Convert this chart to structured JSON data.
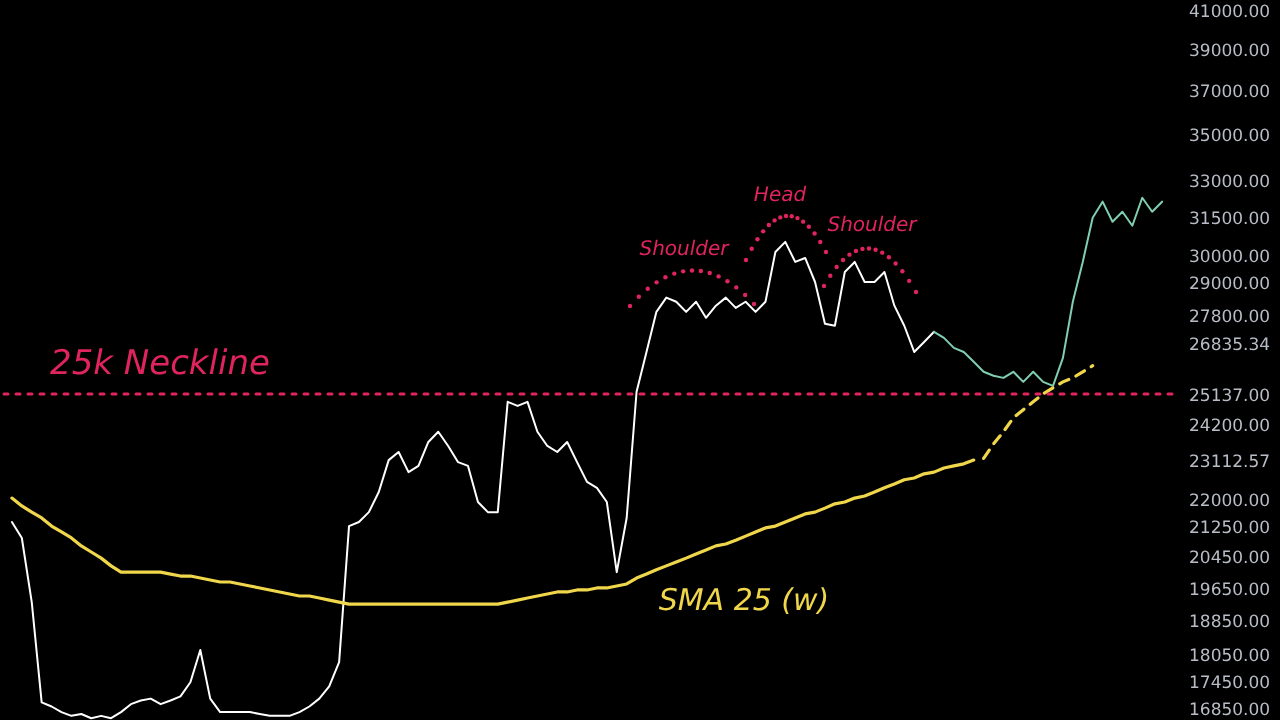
{
  "chart_data": {
    "type": "line",
    "categories": [
      null,
      null,
      null,
      null,
      null,
      null,
      null,
      null,
      null,
      null,
      null,
      null,
      null,
      null,
      null,
      null,
      null,
      null,
      null,
      null,
      null,
      null,
      null,
      null,
      null,
      null,
      null,
      null,
      null,
      null,
      null,
      null,
      null,
      null,
      null,
      null,
      null,
      null,
      null,
      null,
      null,
      null,
      null,
      null,
      null,
      null,
      null,
      null,
      null,
      null,
      null,
      null,
      null,
      null,
      null,
      null,
      null,
      null,
      null,
      null,
      null,
      null,
      null,
      null,
      null,
      null,
      null,
      null,
      null,
      null,
      null,
      null,
      null,
      null,
      null,
      null,
      null,
      null,
      null,
      null,
      null,
      null,
      null,
      null,
      null,
      null,
      null,
      null,
      null,
      null,
      null,
      null,
      null,
      null,
      null,
      null,
      null,
      null,
      null,
      null,
      null,
      null,
      null,
      null,
      null,
      null,
      null,
      null,
      null,
      null,
      null,
      null,
      null,
      null,
      null,
      null,
      null
    ],
    "series": [
      {
        "color": "#ffffff",
        "values": [
          21360,
          20930,
          19290,
          16980,
          16890,
          16770,
          16690,
          16730,
          16640,
          16690,
          16640,
          16770,
          16940,
          17020,
          17060,
          16940,
          17020,
          17110,
          17420,
          18150,
          17060,
          16770,
          16770,
          16770,
          16770,
          16730,
          16690,
          16690,
          16690,
          16770,
          16890,
          17060,
          17330,
          17870,
          21250,
          21360,
          21630,
          22190,
          23110,
          23350,
          22760,
          22940,
          23650,
          23960,
          23530,
          23050,
          22940,
          21910,
          21630,
          21630,
          24890,
          24760,
          24890,
          23960,
          23530,
          23350,
          23650,
          23050,
          22480,
          22310,
          21910,
          20040,
          21470,
          25210,
          26520,
          27910,
          28420,
          28270,
          27910,
          28270,
          27700,
          28130,
          28420,
          28050,
          28270,
          27910,
          28270,
          30120,
          30510,
          29740,
          29890,
          28990,
          27490,
          27420,
          29360,
          29740,
          28990,
          28990,
          29360,
          28130,
          27420,
          26520,
          26860,
          27210,
          null,
          null,
          null,
          null,
          null,
          null,
          null,
          null,
          null,
          null,
          null,
          null,
          null,
          null,
          null,
          null,
          null,
          null,
          null,
          null,
          null,
          null,
          null
        ]
      },
      {
        "color": "#7fcfb0",
        "values": [
          null,
          null,
          null,
          null,
          null,
          null,
          null,
          null,
          null,
          null,
          null,
          null,
          null,
          null,
          null,
          null,
          null,
          null,
          null,
          null,
          null,
          null,
          null,
          null,
          null,
          null,
          null,
          null,
          null,
          null,
          null,
          null,
          null,
          null,
          null,
          null,
          null,
          null,
          null,
          null,
          null,
          null,
          null,
          null,
          null,
          null,
          null,
          null,
          null,
          null,
          null,
          null,
          null,
          null,
          null,
          null,
          null,
          null,
          null,
          null,
          null,
          null,
          null,
          null,
          null,
          null,
          null,
          null,
          null,
          null,
          null,
          null,
          null,
          null,
          null,
          null,
          null,
          null,
          null,
          null,
          null,
          null,
          null,
          null,
          null,
          null,
          null,
          null,
          null,
          null,
          null,
          null,
          null,
          27210,
          27000,
          26660,
          26520,
          26190,
          25860,
          25730,
          25660,
          25860,
          25530,
          25860,
          25530,
          25400,
          26320,
          28270,
          29740,
          31460,
          32110,
          31300,
          31700,
          31140,
          32270,
          31700,
          32110
        ]
      },
      {
        "name": "SMA 25 (w)",
        "color": "#f0d64a",
        "values": [
          22020,
          21800,
          21630,
          21470,
          21250,
          21090,
          20930,
          20720,
          20560,
          20400,
          20200,
          20040,
          20040,
          20040,
          20040,
          20040,
          19990,
          19940,
          19940,
          19890,
          19840,
          19790,
          19790,
          19740,
          19690,
          19640,
          19590,
          19540,
          19490,
          19440,
          19440,
          19390,
          19340,
          19290,
          19240,
          19240,
          19240,
          19240,
          19240,
          19240,
          19240,
          19240,
          19240,
          19240,
          19240,
          19240,
          19240,
          19240,
          19240,
          19240,
          19290,
          19340,
          19390,
          19440,
          19490,
          19540,
          19540,
          19590,
          19590,
          19640,
          19640,
          19690,
          19740,
          19890,
          19990,
          20100,
          20200,
          20300,
          20400,
          20510,
          20610,
          20720,
          20770,
          20870,
          20980,
          21090,
          21200,
          21250,
          21360,
          21470,
          21580,
          21630,
          21740,
          21860,
          21910,
          22020,
          22080,
          22190,
          22310,
          22420,
          22540,
          22590,
          22710,
          22760,
          22880,
          22940,
          23000,
          23110,
          null,
          null,
          null,
          null,
          null,
          null,
          null,
          null,
          null,
          null,
          null,
          null,
          null,
          null,
          null,
          null,
          null,
          null,
          null
        ]
      },
      {
        "color": "#f0d64a",
        "line_style": "dashed",
        "values": [
          null,
          null,
          null,
          null,
          null,
          null,
          null,
          null,
          null,
          null,
          null,
          null,
          null,
          null,
          null,
          null,
          null,
          null,
          null,
          null,
          null,
          null,
          null,
          null,
          null,
          null,
          null,
          null,
          null,
          null,
          null,
          null,
          null,
          null,
          null,
          null,
          null,
          null,
          null,
          null,
          null,
          null,
          null,
          null,
          null,
          null,
          null,
          null,
          null,
          null,
          null,
          null,
          null,
          null,
          null,
          null,
          null,
          null,
          null,
          null,
          null,
          null,
          null,
          null,
          null,
          null,
          null,
          null,
          null,
          null,
          null,
          null,
          null,
          null,
          null,
          null,
          null,
          null,
          null,
          null,
          null,
          null,
          null,
          null,
          null,
          null,
          null,
          null,
          null,
          null,
          null,
          null,
          null,
          null,
          null,
          null,
          null,
          null,
          23160,
          23590,
          23960,
          24390,
          24640,
          24890,
          25140,
          25340,
          25530,
          25660,
          25860,
          26060,
          null,
          null,
          null,
          null,
          null,
          null,
          null
        ]
      }
    ],
    "log": true,
    "ylim": [
      16560,
      41400
    ],
    "yticks": [
      {
        "value": 41000,
        "label": "41000.00"
      },
      {
        "value": 39000,
        "label": "39000.00"
      },
      {
        "value": 37000,
        "label": "37000.00"
      },
      {
        "value": 35000,
        "label": "35000.00"
      },
      {
        "value": 33000,
        "label": "33000.00"
      },
      {
        "value": 31500,
        "label": "31500.00"
      },
      {
        "value": 30000,
        "label": "30000.00"
      },
      {
        "value": 29000,
        "label": "29000.00"
      },
      {
        "value": 27800,
        "label": "27800.00"
      },
      {
        "value": 26835.34,
        "label": "26835.34"
      },
      {
        "value": 25137,
        "label": "25137.00"
      },
      {
        "value": 24200,
        "label": "24200.00"
      },
      {
        "value": 23112.57,
        "label": "23112.57"
      },
      {
        "value": 22000,
        "label": "22000.00"
      },
      {
        "value": 21250,
        "label": "21250.00"
      },
      {
        "value": 20450,
        "label": "20450.00"
      },
      {
        "value": 19650,
        "label": "19650.00"
      },
      {
        "value": 18850,
        "label": "18850.00"
      },
      {
        "value": 18050,
        "label": "18050.00"
      },
      {
        "value": 17450,
        "label": "17450.00"
      },
      {
        "value": 16850,
        "label": "16850.00"
      }
    ],
    "tick_labels": "y",
    "marker": "none",
    "ref_lines": [
      {
        "axis": "y",
        "value": 25137,
        "label": "25k Neckline",
        "color": "#e0245e",
        "line_style": "dotted"
      }
    ],
    "annotations": [
      "Shoulder",
      "Head",
      "Shoulder"
    ]
  }
}
